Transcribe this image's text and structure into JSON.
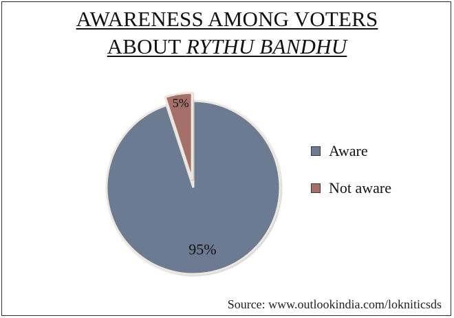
{
  "title": {
    "line1": "AWARENESS AMONG VOTERS",
    "line2_prefix": "ABOUT ",
    "line2_emphasis": "RYTHU BANDHU"
  },
  "source": "Source: www.outlookindia.com/lokniticsds",
  "colors": {
    "aware": "#6C7A92",
    "not_aware": "#A56F6A",
    "slice_edge": "#ECE7DF"
  },
  "chart_data": {
    "type": "pie",
    "title": "AWARENESS AMONG VOTERS ABOUT RYTHU BANDHU",
    "categories": [
      "Aware",
      "Not aware"
    ],
    "values": [
      95,
      5
    ],
    "labels": [
      "95%",
      "5%"
    ],
    "legend_position": "right",
    "exploded_slice": "Not aware"
  }
}
